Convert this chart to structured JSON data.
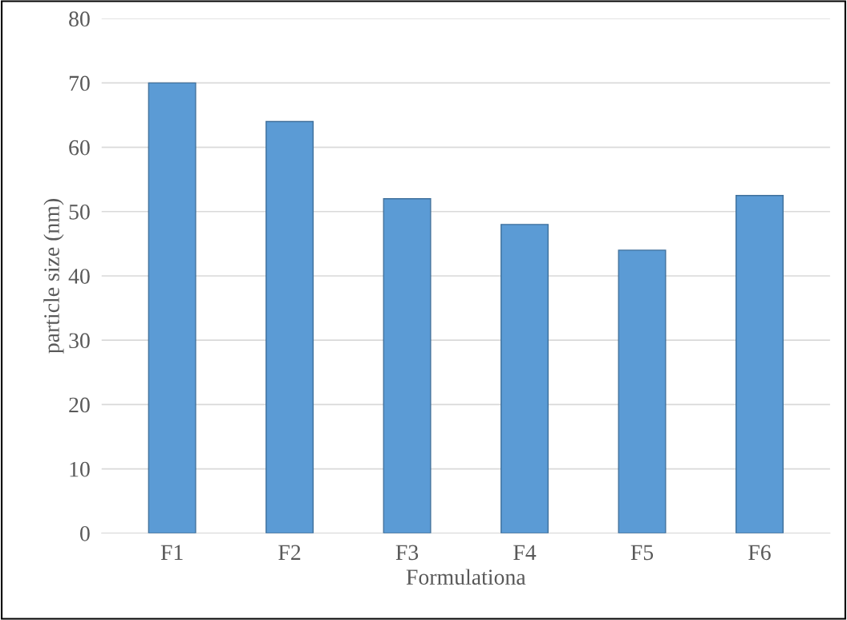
{
  "chart_data": {
    "type": "bar",
    "xlabel": "Formulationa",
    "ylabel": "particle size (nm)",
    "categories": [
      "F1",
      "F2",
      "F3",
      "F4",
      "F5",
      "F6"
    ],
    "values": [
      70,
      64,
      52,
      48,
      44,
      52.5
    ],
    "color": "#5b9bd5",
    "ylim": [
      0,
      80
    ],
    "yticks": [
      0,
      10,
      20,
      30,
      40,
      50,
      60,
      70,
      80
    ],
    "grid": "y"
  }
}
